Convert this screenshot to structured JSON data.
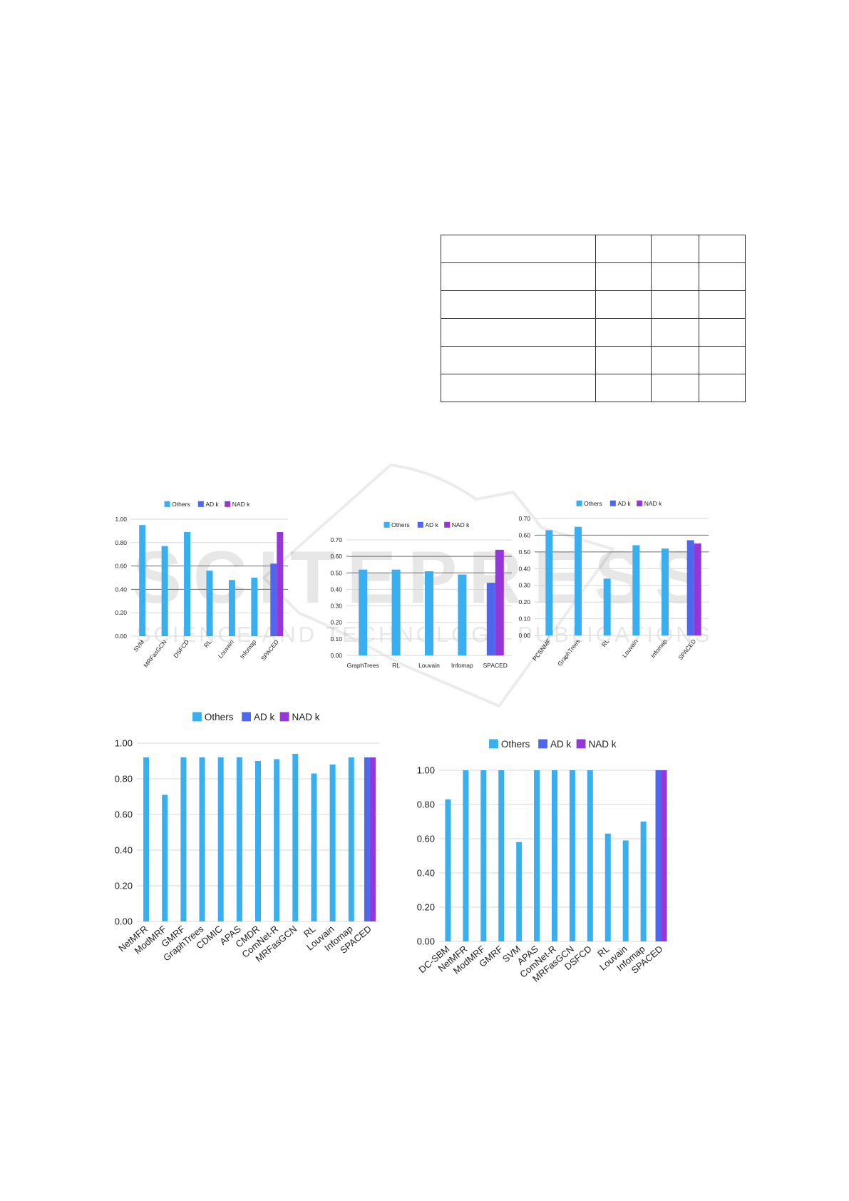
{
  "colors": {
    "others": "#3aaff0",
    "ad_k": "#4f66ee",
    "nad_k": "#9536d8"
  },
  "legend": [
    "Others",
    "AD k",
    "NAD k"
  ],
  "watermark": {
    "line1": "SCITEPRESS",
    "line2": "SCIENCE AND TECHNOLOGY PUBLICATIONS"
  },
  "chart_data": [
    {
      "type": "bar",
      "legend": [
        "Others",
        "AD k",
        "NAD k"
      ],
      "legend_position": "top-center",
      "ylim": [
        0,
        1.0
      ],
      "yticks": [
        "0.00",
        "0.20",
        "0.40",
        "0.60",
        "0.80",
        "1.00"
      ],
      "categories": [
        "SVM",
        "MRFasGCN",
        "DSFCD",
        "RL",
        "Louvain",
        "Infomap",
        "SPACED"
      ],
      "series": [
        {
          "name": "Others",
          "values": [
            0.95,
            0.77,
            0.89,
            0.56,
            0.48,
            0.5,
            null
          ]
        },
        {
          "name": "AD k",
          "values": [
            null,
            null,
            null,
            null,
            null,
            null,
            0.62
          ]
        },
        {
          "name": "NAD k",
          "values": [
            null,
            null,
            null,
            null,
            null,
            null,
            0.89
          ]
        }
      ]
    },
    {
      "type": "bar",
      "legend": [
        "Others",
        "AD k",
        "NAD k"
      ],
      "legend_position": "top-center",
      "ylim": [
        0,
        0.7
      ],
      "yticks": [
        "0.00",
        "0.10",
        "0.20",
        "0.30",
        "0.40",
        "0.50",
        "0.60",
        "0.70"
      ],
      "categories": [
        "GraphTrees",
        "RL",
        "Louvain",
        "Infomap",
        "SPACED"
      ],
      "series": [
        {
          "name": "Others",
          "values": [
            0.52,
            0.52,
            0.51,
            0.49,
            null
          ]
        },
        {
          "name": "AD k",
          "values": [
            null,
            null,
            null,
            null,
            0.44
          ]
        },
        {
          "name": "NAD k",
          "values": [
            null,
            null,
            null,
            null,
            0.64
          ]
        }
      ]
    },
    {
      "type": "bar",
      "legend": [
        "Others",
        "AD k",
        "NAD k"
      ],
      "legend_position": "top-center",
      "ylim": [
        0,
        0.7
      ],
      "yticks": [
        "0.00",
        "0.10",
        "0.20",
        "0.30",
        "0.40",
        "0.50",
        "0.60",
        "0.70"
      ],
      "categories": [
        "PCSNMF",
        "GraphTrees",
        "RL",
        "Louvain",
        "Infomap",
        "SPACED"
      ],
      "series": [
        {
          "name": "Others",
          "values": [
            0.63,
            0.65,
            0.34,
            0.54,
            0.52,
            null
          ]
        },
        {
          "name": "AD k",
          "values": [
            null,
            null,
            null,
            null,
            null,
            0.57
          ]
        },
        {
          "name": "NAD k",
          "values": [
            null,
            null,
            null,
            null,
            null,
            0.55
          ]
        }
      ]
    },
    {
      "type": "bar",
      "legend": [
        "Others",
        "AD k",
        "NAD k"
      ],
      "legend_position": "top-center",
      "ylim": [
        0,
        1.0
      ],
      "yticks": [
        "0.00",
        "0.20",
        "0.40",
        "0.60",
        "0.80",
        "1.00"
      ],
      "categories": [
        "NetMFR",
        "ModMRF",
        "GMRF",
        "GraphTrees",
        "CDMIC",
        "APAS",
        "CMDR",
        "ComNet-R",
        "MRFasGCN",
        "RL",
        "Louvain",
        "Infomap",
        "SPACED"
      ],
      "series": [
        {
          "name": "Others",
          "values": [
            0.92,
            0.71,
            0.92,
            0.92,
            0.92,
            0.92,
            0.9,
            0.91,
            0.94,
            0.83,
            0.88,
            0.92,
            null
          ]
        },
        {
          "name": "AD k",
          "values": [
            null,
            null,
            null,
            null,
            null,
            null,
            null,
            null,
            null,
            null,
            null,
            null,
            0.92
          ]
        },
        {
          "name": "NAD k",
          "values": [
            null,
            null,
            null,
            null,
            null,
            null,
            null,
            null,
            null,
            null,
            null,
            null,
            0.92
          ]
        }
      ]
    },
    {
      "type": "bar",
      "legend": [
        "Others",
        "AD k",
        "NAD k"
      ],
      "legend_position": "top-center",
      "ylim": [
        0,
        1.0
      ],
      "yticks": [
        "0.00",
        "0.20",
        "0.40",
        "0.60",
        "0.80",
        "1.00"
      ],
      "categories": [
        "DC-SBM",
        "NetMFR",
        "ModMRF",
        "GMRF",
        "SVM",
        "APAS",
        "ComNet-R",
        "MRFasGCN",
        "DSFCD",
        "RL",
        "Louvain",
        "Infomap",
        "SPACED"
      ],
      "series": [
        {
          "name": "Others",
          "values": [
            0.83,
            1.0,
            1.0,
            1.0,
            0.58,
            1.0,
            1.0,
            1.0,
            1.0,
            0.63,
            0.59,
            0.7,
            null
          ]
        },
        {
          "name": "AD k",
          "values": [
            null,
            null,
            null,
            null,
            null,
            null,
            null,
            null,
            null,
            null,
            null,
            null,
            1.0
          ]
        },
        {
          "name": "NAD k",
          "values": [
            null,
            null,
            null,
            null,
            null,
            null,
            null,
            null,
            null,
            null,
            null,
            null,
            1.0
          ]
        }
      ]
    }
  ]
}
